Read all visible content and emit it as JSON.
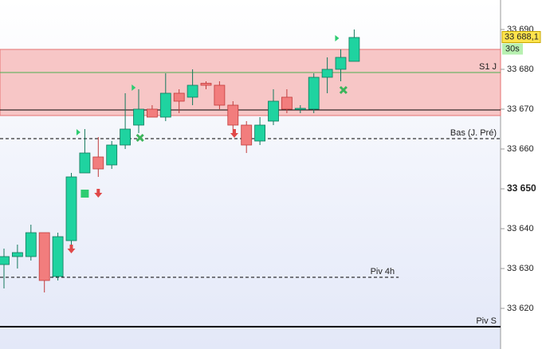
{
  "chart_data": {
    "type": "candlestick",
    "categories": [
      null,
      null,
      null,
      null,
      null,
      null,
      null,
      null,
      null,
      null,
      null,
      null,
      null,
      null,
      null,
      null,
      null,
      null,
      null,
      null,
      null,
      null,
      null,
      null,
      null,
      null,
      null
    ],
    "open": [
      33631,
      33633,
      33633,
      33639,
      33628,
      33637,
      33654,
      33658,
      33656,
      33661,
      33666,
      33670,
      33668,
      33674,
      33673,
      33676.5,
      33676,
      33671,
      33666,
      33662,
      33667,
      33673,
      33670,
      33670,
      33678,
      33680,
      33682
    ],
    "high": [
      33635,
      33636,
      33641,
      33639,
      33639,
      33654,
      33665,
      33663,
      33662,
      33674,
      33675,
      33671,
      33679,
      33675,
      33680,
      33677,
      33677,
      33672,
      33667,
      33668,
      33675,
      33675,
      33671,
      33679,
      33683,
      33685,
      33690
    ],
    "low": [
      33625,
      33630,
      33632,
      33624,
      33627,
      33636,
      33654,
      33653,
      33655,
      33660,
      33664,
      33668,
      33667,
      33669,
      33671,
      33675,
      33670,
      33664,
      33659,
      33661,
      33666,
      33669,
      33669,
      33669,
      33674,
      33677,
      33682
    ],
    "close": [
      33633,
      33634,
      33639,
      33627,
      33638,
      33653,
      33659,
      33655,
      33661,
      33665,
      33670,
      33668,
      33674,
      33672,
      33676,
      33676,
      33671,
      33666,
      33661,
      33666,
      33672,
      33670,
      33670.2,
      33678,
      33680,
      33683,
      33688
    ],
    "up_color": "#1fd3a0",
    "down_color": "#f27d7d",
    "ylim": [
      33609.8,
      33697.4
    ],
    "yticks": [
      {
        "value": 33620,
        "label": "33 620"
      },
      {
        "value": 33630,
        "label": "33 630"
      },
      {
        "value": 33640,
        "label": "33 640"
      },
      {
        "value": 33650,
        "label": "33 650"
      },
      {
        "value": 33660,
        "label": "33 660"
      },
      {
        "value": 33670,
        "label": "33 670"
      },
      {
        "value": 33680,
        "label": "33 680"
      },
      {
        "value": 33690,
        "label": "33 690"
      }
    ],
    "zone": {
      "from": 33668.4,
      "to": 33685,
      "color": "#f7c6c6"
    },
    "levels": [
      {
        "label": "S1 J",
        "value": 33679.2,
        "style": "solid",
        "color": "#4caf50"
      },
      {
        "value": 33669.8,
        "style": "solid",
        "color": "#000000"
      },
      {
        "label": "Bas (J. Pré)",
        "value": 33662.6,
        "style": "dashed",
        "color": "#000000"
      },
      {
        "label": "Piv 4h",
        "value": 33627.8,
        "style": "dashed",
        "color": "#000000",
        "end_index": 29.3
      },
      {
        "label": "Piv S",
        "value": 33615.4,
        "style": "thick",
        "color": "#000000"
      }
    ],
    "markers": [
      {
        "kind": "triangle",
        "index": 5.5,
        "value": 33664.2
      },
      {
        "kind": "triangle",
        "index": 9.6,
        "value": 33675.4
      },
      {
        "kind": "triangle",
        "index": 24.7,
        "value": 33687.8
      },
      {
        "kind": "arrow",
        "index": 5,
        "value": 33634.8
      },
      {
        "kind": "arrow",
        "index": 7,
        "value": 33648.8
      },
      {
        "kind": "arrow",
        "index": 17.1,
        "value": 33663.8
      },
      {
        "kind": "cross",
        "index": 10.1,
        "value": 33662.8
      },
      {
        "kind": "cross",
        "index": 25.2,
        "value": 33674.8
      },
      {
        "kind": "square",
        "index": 6,
        "value": 33648.8
      }
    ],
    "last_price": {
      "value": 33688.1,
      "label": "33 688,1"
    },
    "timer": "30s"
  }
}
